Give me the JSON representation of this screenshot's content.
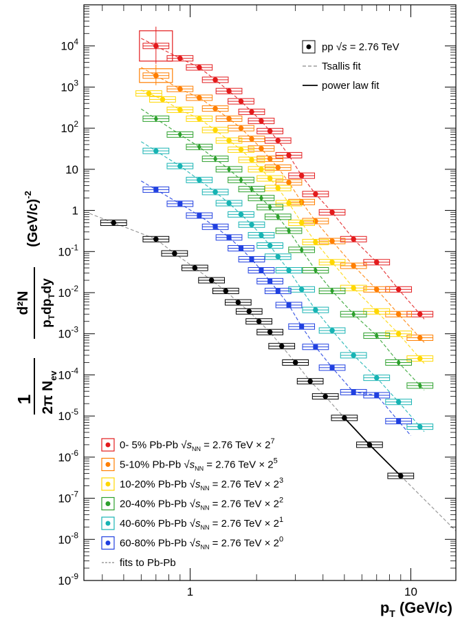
{
  "chart_data": {
    "type": "scatter",
    "x_scale": "log",
    "y_scale": "log",
    "xlim": [
      0.33,
      16
    ],
    "ylim": [
      1e-09,
      100000
    ],
    "xlabel": {
      "main": "p",
      "sub": "T",
      "rest": " (GeV/c)"
    },
    "ylabel": {
      "lead": "1",
      "lead_den": "2π N",
      "lead_den_sub": "ev",
      "main_num": "d²N",
      "main_den": "p",
      "main_den_sub": "T",
      "main_den_rest": "dp",
      "main_den_sub2": "T",
      "main_den_end": "dy",
      "units": "(GeV/c)",
      "units_exp": "-2"
    },
    "x_ticks": [
      "1",
      "10"
    ],
    "y_ticks": [
      {
        "mant": "10",
        "exp": "-9"
      },
      {
        "mant": "10",
        "exp": "-8"
      },
      {
        "mant": "10",
        "exp": "-7"
      },
      {
        "mant": "10",
        "exp": "-6"
      },
      {
        "mant": "10",
        "exp": "-5"
      },
      {
        "mant": "10",
        "exp": "-4"
      },
      {
        "mant": "10",
        "exp": "-3"
      },
      {
        "mant": "10",
        "exp": "-2"
      },
      {
        "mant": "10",
        "exp": "-1"
      },
      {
        "mant": "1",
        "exp": ""
      },
      {
        "mant": "10",
        "exp": ""
      },
      {
        "mant": "10",
        "exp": "2"
      },
      {
        "mant": "10",
        "exp": "3"
      },
      {
        "mant": "10",
        "exp": "4"
      }
    ],
    "top_legend": [
      {
        "kind": "pp",
        "text": "pp",
        "sqrt": "s",
        "rest": " = 2.76 TeV"
      },
      {
        "kind": "tsallis",
        "text": "Tsallis fit"
      },
      {
        "kind": "power",
        "text": "power law fit"
      }
    ],
    "bottom_legend": [
      {
        "label": "0-  5% Pb-Pb",
        "sqrt": "s",
        "sqrt_sub": "NN",
        "rest": " = 2.76 TeV × 2",
        "exp": "7",
        "color": "#e31a1c"
      },
      {
        "label": "5-10% Pb-Pb",
        "sqrt": "s",
        "sqrt_sub": "NN",
        "rest": " = 2.76 TeV × 2",
        "exp": "5",
        "color": "#ff7f00"
      },
      {
        "label": "10-20% Pb-Pb",
        "sqrt": "s",
        "sqrt_sub": "NN",
        "rest": " = 2.76 TeV × 2",
        "exp": "3",
        "color": "#ffd700"
      },
      {
        "label": "20-40% Pb-Pb",
        "sqrt": "s",
        "sqrt_sub": "NN",
        "rest": " = 2.76 TeV × 2",
        "exp": "2",
        "color": "#2ca02c"
      },
      {
        "label": "40-60% Pb-Pb",
        "sqrt": "s",
        "sqrt_sub": "NN",
        "rest": " = 2.76 TeV × 2",
        "exp": "1",
        "color": "#17b3b3"
      },
      {
        "label": "60-80% Pb-Pb",
        "sqrt": "s",
        "sqrt_sub": "NN",
        "rest": " = 2.76 TeV × 2",
        "exp": "0",
        "color": "#1f3fe0"
      },
      {
        "label": "fits to Pb-Pb",
        "kind": "fits"
      }
    ],
    "series": [
      {
        "name": "0-  5% Pb-Pb",
        "color": "#e31a1c",
        "marker": "circle",
        "x": [
          0.7,
          0.9,
          1.1,
          1.3,
          1.5,
          1.7,
          1.9,
          2.1,
          2.3,
          2.5,
          2.8,
          3.2,
          3.7,
          4.4,
          5.5,
          7.0,
          8.8,
          11.0
        ],
        "y": [
          10000,
          5000,
          3000,
          1500,
          800,
          450,
          250,
          150,
          85,
          50,
          22,
          7,
          2.5,
          0.9,
          0.2,
          0.055,
          0.012,
          0.003
        ],
        "fit_x": [
          0.6,
          11.5
        ]
      },
      {
        "name": "5-10% Pb-Pb",
        "color": "#ff7f00",
        "marker": "circle",
        "x": [
          0.7,
          0.9,
          1.1,
          1.3,
          1.5,
          1.7,
          1.9,
          2.1,
          2.3,
          2.5,
          2.8,
          3.2,
          3.7,
          4.4,
          5.5,
          7.0,
          8.8,
          11.0
        ],
        "y": [
          1900,
          900,
          550,
          300,
          170,
          100,
          55,
          32,
          18,
          11,
          4.8,
          1.6,
          0.55,
          0.18,
          0.045,
          0.012,
          0.003,
          0.0008
        ],
        "fit_x": [
          0.6,
          11.5
        ]
      },
      {
        "name": "10-20% Pb-Pb",
        "color": "#ffd700",
        "marker": "circle",
        "x": [
          0.65,
          0.75,
          0.9,
          1.1,
          1.3,
          1.5,
          1.7,
          1.9,
          2.1,
          2.3,
          2.5,
          2.8,
          3.2,
          3.7,
          4.4,
          5.5,
          7.0,
          8.8,
          11.0
        ],
        "y": [
          700,
          500,
          280,
          170,
          90,
          50,
          30,
          17,
          10,
          6,
          3.5,
          1.5,
          0.5,
          0.17,
          0.055,
          0.013,
          0.0035,
          0.001,
          0.00025
        ],
        "fit_x": [
          0.6,
          11.5
        ]
      },
      {
        "name": "20-40% Pb-Pb",
        "color": "#2ca02c",
        "marker": "diamond",
        "x": [
          0.7,
          0.9,
          1.1,
          1.3,
          1.5,
          1.7,
          1.9,
          2.1,
          2.3,
          2.5,
          2.8,
          3.2,
          3.7,
          4.4,
          5.5,
          7.0,
          8.8,
          11.0
        ],
        "y": [
          170,
          70,
          35,
          18,
          10,
          5.5,
          3.3,
          2.0,
          1.2,
          0.7,
          0.32,
          0.11,
          0.035,
          0.011,
          0.003,
          0.0009,
          0.0002,
          5.5e-05
        ],
        "fit_x": [
          0.6,
          11.5
        ]
      },
      {
        "name": "40-60% Pb-Pb",
        "color": "#17b3b3",
        "marker": "circle",
        "x": [
          0.7,
          0.9,
          1.1,
          1.3,
          1.5,
          1.7,
          1.9,
          2.1,
          2.3,
          2.5,
          2.8,
          3.2,
          3.7,
          4.4,
          5.5,
          7.0,
          8.8,
          11.0
        ],
        "y": [
          28,
          12,
          5.5,
          2.8,
          1.5,
          0.8,
          0.45,
          0.25,
          0.14,
          0.075,
          0.035,
          0.012,
          0.0038,
          0.0012,
          0.0003,
          8.5e-05,
          2.2e-05,
          5.5e-06
        ],
        "fit_x": [
          0.6,
          11.5
        ]
      },
      {
        "name": "60-80% Pb-Pb",
        "color": "#1f3fe0",
        "marker": "square",
        "x": [
          0.7,
          0.9,
          1.1,
          1.3,
          1.5,
          1.7,
          1.9,
          2.1,
          2.3,
          2.5,
          2.8,
          3.2,
          3.7,
          4.4,
          5.5,
          7.0,
          8.8
        ],
        "y": [
          3.2,
          1.45,
          0.75,
          0.4,
          0.22,
          0.12,
          0.065,
          0.035,
          0.019,
          0.011,
          0.005,
          0.0015,
          0.00048,
          0.00015,
          3.8e-05,
          3.2e-05,
          7.5e-06
        ],
        "fit_x": [
          0.6,
          10.0
        ]
      },
      {
        "name": "pp",
        "color": "#000000",
        "marker": "circle",
        "x": [
          0.45,
          0.7,
          0.85,
          1.05,
          1.25,
          1.45,
          1.65,
          1.85,
          2.05,
          2.3,
          2.6,
          3.0,
          3.5,
          4.1,
          5.0,
          6.5,
          9.0
        ],
        "y": [
          0.5,
          0.2,
          0.09,
          0.04,
          0.02,
          0.011,
          0.0058,
          0.0035,
          0.002,
          0.0011,
          0.0005,
          0.0002,
          7e-05,
          3e-05,
          9e-06,
          2e-06,
          3.5e-07
        ],
        "fit_x": [
          0.35,
          16
        ]
      }
    ]
  }
}
